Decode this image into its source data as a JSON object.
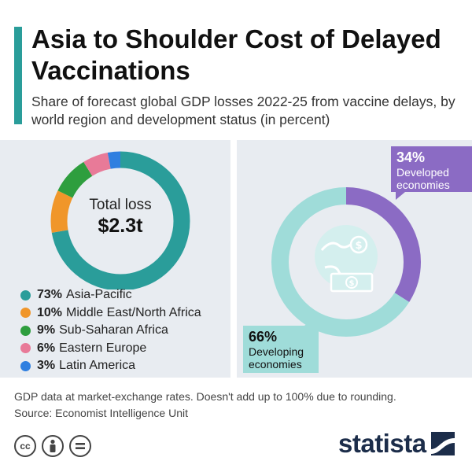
{
  "header": {
    "title": "Asia to Shoulder Cost of Delayed Vaccinations",
    "subtitle": "Share of forecast global GDP losses 2022-25 from vaccine delays, by world region and development status (in percent)"
  },
  "footer": {
    "note": "GDP data at market-exchange rates. Doesn't add up to 100% due to rounding.",
    "source": "Source: Economist Intelligence Unit",
    "brand": "statista",
    "license_icons": [
      "cc-icon",
      "person-icon",
      "equals-icon"
    ]
  },
  "region_chart": {
    "center_line1": "Total loss",
    "center_line2": "$2.3t"
  },
  "chart_data": [
    {
      "type": "pie",
      "title": "",
      "categories": [
        "Asia-Pacific",
        "Middle East/North Africa",
        "Sub-Saharan Africa",
        "Eastern Europe",
        "Latin America"
      ],
      "values": [
        73,
        10,
        9,
        6,
        3
      ],
      "value_labels": [
        "73%",
        "10%",
        "9%",
        "6%",
        "3%"
      ],
      "colors": [
        "#2a9d9a",
        "#f0962a",
        "#2e9e3e",
        "#e87a98",
        "#2f7fe0"
      ],
      "style": "donut"
    },
    {
      "type": "pie",
      "title": "",
      "categories": [
        "Developed economies",
        "Developing economies"
      ],
      "values": [
        34,
        66
      ],
      "value_labels": [
        "34%",
        "66%"
      ],
      "label_lines": [
        [
          "Developed",
          "economies"
        ],
        [
          "Developing",
          "economies"
        ]
      ],
      "colors": [
        "#8b6bc4",
        "#9fdcd9"
      ],
      "style": "donut"
    }
  ]
}
